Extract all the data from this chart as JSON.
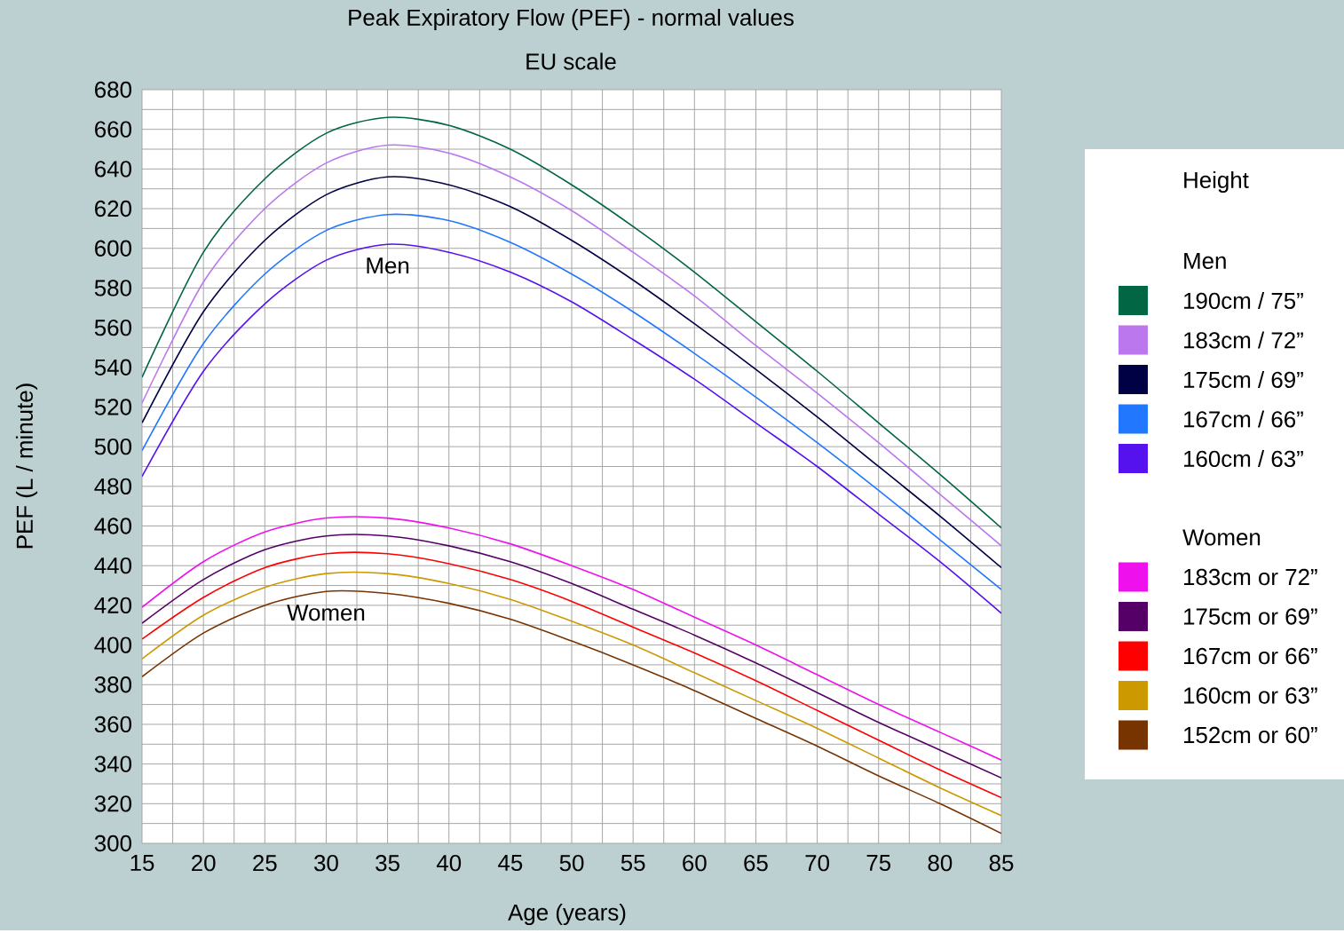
{
  "chart_data": {
    "type": "line",
    "title": "Peak Expiratory Flow (PEF) - normal values",
    "subtitle": "EU scale",
    "xlabel": "Age (years)",
    "ylabel": "PEF (L / minute)",
    "legend_title": "Height",
    "x": [
      15,
      20,
      25,
      30,
      35,
      40,
      45,
      50,
      55,
      60,
      65,
      70,
      75,
      80,
      85
    ],
    "series": [
      {
        "name": "190cm / 75”",
        "color": "#006644",
        "values": [
          535,
          598,
          635,
          658,
          666,
          662,
          650,
          632,
          611,
          588,
          563,
          538,
          512,
          486,
          459
        ]
      },
      {
        "name": "183cm / 72”",
        "color": "#bb77ee",
        "values": [
          522,
          583,
          620,
          643,
          652,
          648,
          636,
          619,
          598,
          576,
          551,
          527,
          502,
          476,
          450
        ]
      },
      {
        "name": "175cm / 69”",
        "color": "#000044",
        "values": [
          512,
          568,
          604,
          627,
          636,
          632,
          621,
          604,
          584,
          562,
          539,
          515,
          490,
          465,
          439
        ]
      },
      {
        "name": "167cm / 66”",
        "color": "#2277ff",
        "values": [
          498,
          552,
          587,
          609,
          617,
          614,
          603,
          587,
          568,
          547,
          525,
          502,
          478,
          453,
          428
        ]
      },
      {
        "name": "160cm / 63”",
        "color": "#5511ee",
        "values": [
          485,
          538,
          572,
          594,
          602,
          598,
          588,
          573,
          554,
          534,
          512,
          490,
          466,
          442,
          416
        ]
      },
      {
        "name": "183cm or 72”",
        "color": "#ee11ee",
        "values": [
          419,
          442,
          457,
          464,
          464,
          459,
          451,
          440,
          428,
          414,
          400,
          385,
          370,
          356,
          342
        ]
      },
      {
        "name": "175cm or 69”",
        "color": "#550066",
        "values": [
          411,
          433,
          448,
          455,
          455,
          450,
          442,
          431,
          418,
          405,
          391,
          376,
          361,
          347,
          333
        ]
      },
      {
        "name": "167cm or 66”",
        "color": "#ff0000",
        "values": [
          403,
          424,
          439,
          446,
          446,
          441,
          433,
          422,
          409,
          396,
          382,
          367,
          352,
          337,
          323
        ]
      },
      {
        "name": "160cm or 63”",
        "color": "#cc9900",
        "values": [
          393,
          415,
          429,
          436,
          436,
          431,
          423,
          412,
          400,
          386,
          372,
          358,
          343,
          328,
          314
        ]
      },
      {
        "name": "152cm or 60”",
        "color": "#773300",
        "values": [
          384,
          406,
          420,
          427,
          426,
          421,
          413,
          402,
          390,
          377,
          363,
          349,
          334,
          320,
          305
        ]
      }
    ],
    "annotations": [
      "Men",
      "Women",
      "Men",
      "Women"
    ],
    "xlim": [
      15,
      85
    ],
    "ylim": [
      300,
      680
    ],
    "xticks": [
      15,
      20,
      25,
      30,
      35,
      40,
      45,
      50,
      55,
      60,
      65,
      70,
      75,
      80,
      85
    ],
    "yticks": [
      300,
      320,
      340,
      360,
      380,
      400,
      420,
      440,
      460,
      480,
      500,
      520,
      540,
      560,
      580,
      600,
      620,
      640,
      660,
      680
    ],
    "grid": true,
    "legend": "right",
    "marker": "none",
    "line_style": "solid"
  }
}
